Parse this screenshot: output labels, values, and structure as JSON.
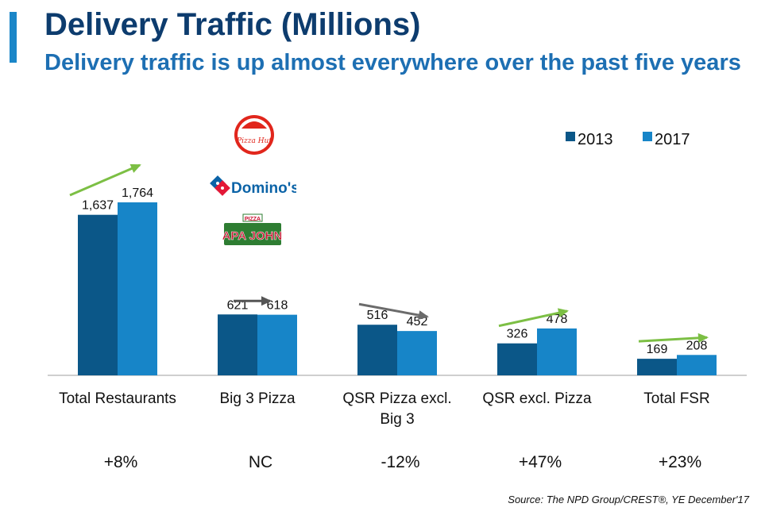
{
  "header": {
    "title": "Delivery Traffic (Millions)",
    "subtitle": "Delivery traffic is up almost everywhere over the past five years"
  },
  "logos": {
    "pizza_hut": "Pizza Hut",
    "dominos": "Domino's",
    "papa_johns": "PAPA JOHNS",
    "papa_johns_top": "PIZZA"
  },
  "chart_data": {
    "type": "bar",
    "categories": [
      [
        "Total Restaurants"
      ],
      [
        "Big 3 Pizza"
      ],
      [
        "QSR Pizza excl.",
        "Big 3"
      ],
      [
        "QSR excl. Pizza"
      ],
      [
        "Total FSR"
      ]
    ],
    "series": [
      {
        "name": "2013",
        "values": [
          1637,
          621,
          516,
          326,
          169
        ],
        "labels": [
          "1,637",
          "621",
          "516",
          "326",
          "169"
        ],
        "color": "#0b5788"
      },
      {
        "name": "2017",
        "values": [
          1764,
          618,
          452,
          478,
          208
        ],
        "labels": [
          "1,764",
          "618",
          "452",
          "478",
          "208"
        ],
        "color": "#1785c8"
      }
    ],
    "changes": [
      "+8%",
      "NC",
      "-12%",
      "+47%",
      "+23%"
    ],
    "trends": [
      "up",
      "flat",
      "down",
      "up",
      "up"
    ],
    "ylim": [
      0,
      1800
    ],
    "legend_position": "top-right",
    "grid": false
  },
  "source": "Source: The NPD Group/CREST®, YE December'17",
  "colors": {
    "title": "#0d3c6e",
    "subtitle": "#1d6fb3",
    "accent": "#1a86c8",
    "trend_up": "#7cbf44",
    "trend_flat": "#555555"
  }
}
